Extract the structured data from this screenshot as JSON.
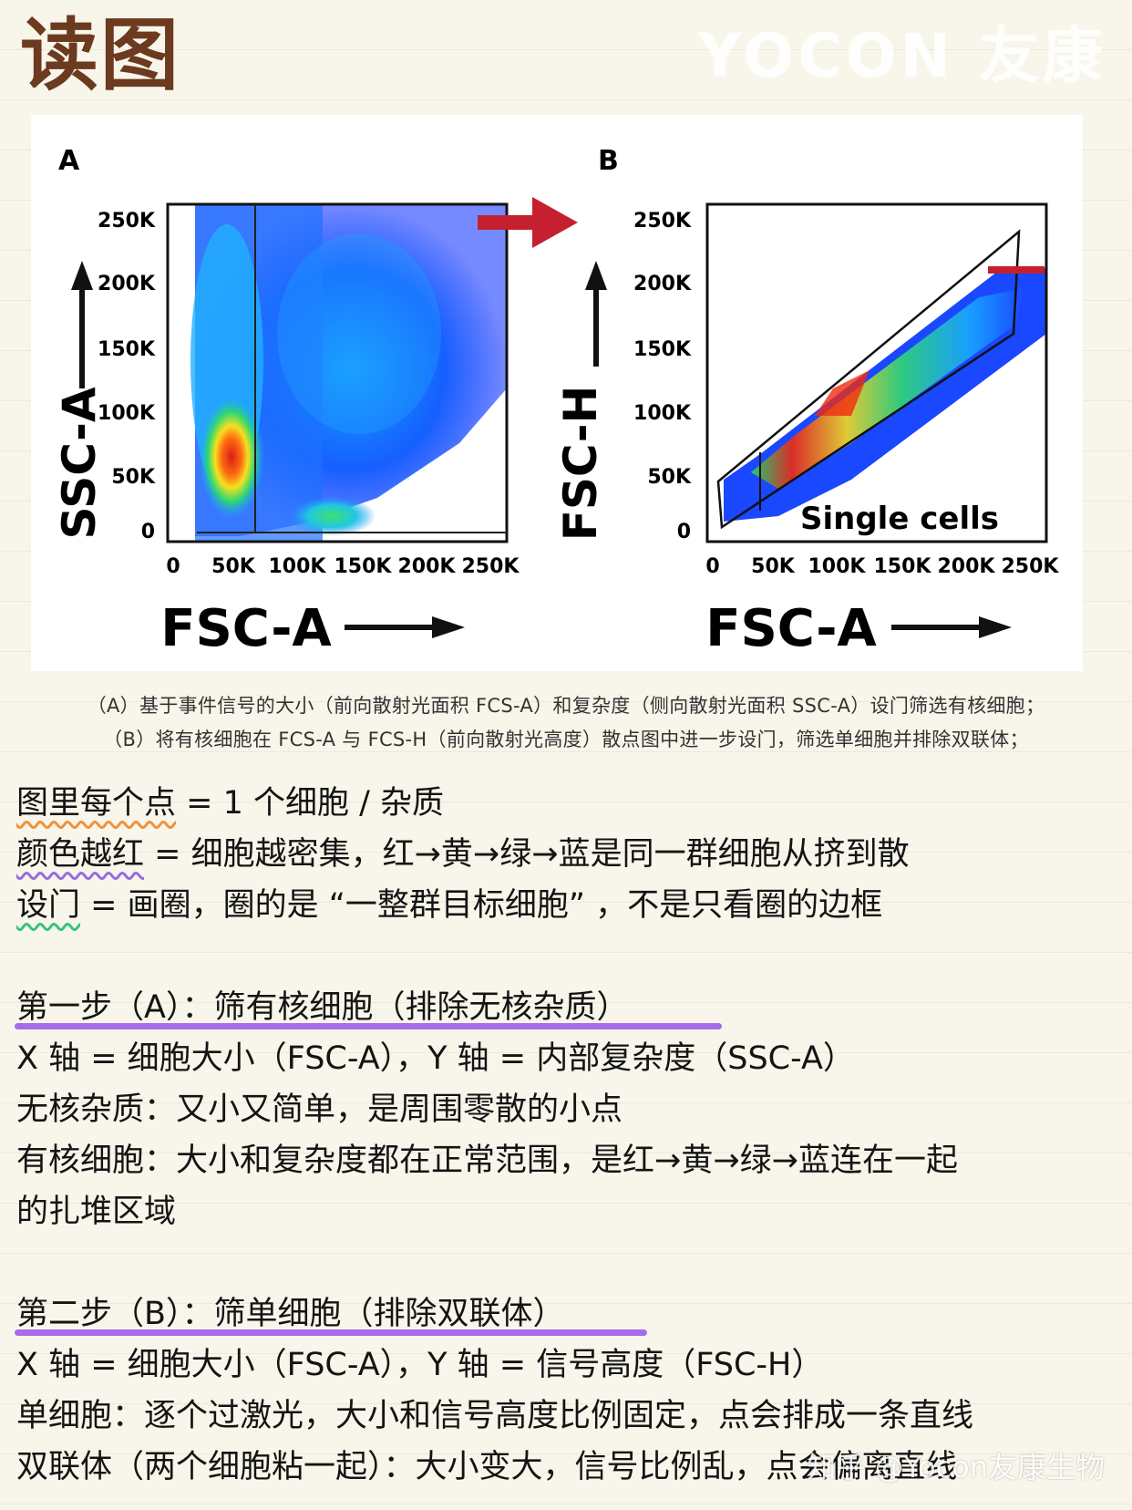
{
  "title": "读图",
  "brand_watermark": "YOCON 友康",
  "figure": {
    "panel_a": {
      "letter": "A",
      "y_label": "SSC-A",
      "x_label": "FSC-A",
      "y_ticks": [
        "250K",
        "200K",
        "150K",
        "100K",
        "50K",
        "0"
      ],
      "x_ticks": [
        "0",
        "50K",
        "100K",
        "150K",
        "200K",
        "250K"
      ]
    },
    "panel_b": {
      "letter": "B",
      "y_label": "FSC-H",
      "x_label": "FSC-A",
      "y_ticks": [
        "250K",
        "200K",
        "150K",
        "100K",
        "50K",
        "0"
      ],
      "x_ticks": [
        "0",
        "50K",
        "100K",
        "150K",
        "200K",
        "250K"
      ],
      "gate_label": "Single cells"
    },
    "colors": {
      "arrow": "#c4202f",
      "density_low": "#1a3cff",
      "density_high": "#e02a10"
    }
  },
  "caption": {
    "line1": "（A）基于事件信号的大小（前向散射光面积 FCS-A）和复杂度（侧向散射光面积 SSC-A）设门筛选有核细胞；",
    "line2": "（B）将有核细胞在 FCS-A 与 FCS-H（前向散射光高度）散点图中进一步设门，筛选单细胞并排除双联体；"
  },
  "intro": {
    "l1_key": "图里每个点",
    "l1_rest": " = 1 个细胞 / 杂质",
    "l2_key": "颜色越红",
    "l2_rest": " = 细胞越密集，红→黄→绿→蓝是同一群细胞从挤到散",
    "l3_key": "设门",
    "l3_rest": " = 画圈，圈的是 “一整群目标细胞” ，不是只看圈的边框"
  },
  "step1": {
    "heading": "第一步（A）：筛有核细胞（排除无核杂质）",
    "axes": "X 轴 = 细胞大小（FSC-A），Y 轴 = 内部复杂度（SSC-A）",
    "debris": "无核杂质：又小又简单，是周围零散的小点",
    "nucleated_1": "有核细胞：大小和复杂度都在正常范围，是红→黄→绿→蓝连在一起",
    "nucleated_2": "的扎堆区域"
  },
  "step2": {
    "heading": "第二步（B）：筛单细胞（排除双联体）",
    "axes": "X 轴 = 细胞大小（FSC-A），Y 轴 = 信号高度（FSC-H）",
    "single": "单细胞：逐个过激光，大小和信号高度比例固定，点会排成一条直线",
    "doublet": "双联体（两个细胞粘一起）：大小变大，信号比例乱，点会偏离直线"
  },
  "platform_watermark": "知乎 @Yocon友康生物"
}
